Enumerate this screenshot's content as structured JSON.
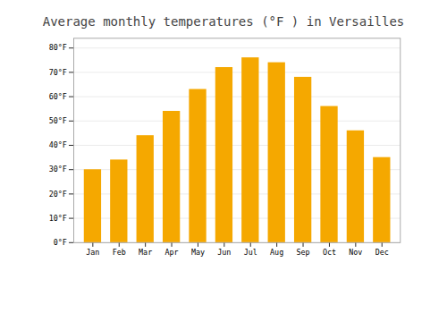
{
  "chart_data": {
    "type": "bar",
    "title": "Average monthly temperatures (°F ) in Versailles",
    "categories": [
      "Jan",
      "Feb",
      "Mar",
      "Apr",
      "May",
      "Jun",
      "Jul",
      "Aug",
      "Sep",
      "Oct",
      "Nov",
      "Dec"
    ],
    "values": [
      30,
      34,
      44,
      54,
      63,
      72,
      76,
      74,
      68,
      56,
      46,
      35
    ],
    "color": "#F5A800",
    "ylim": [
      0,
      84
    ],
    "yticks": [
      {
        "value": 0,
        "label": "0°F"
      },
      {
        "value": 10,
        "label": "10°F"
      },
      {
        "value": 20,
        "label": "20°F"
      },
      {
        "value": 30,
        "label": "30°F"
      },
      {
        "value": 40,
        "label": "40°F"
      },
      {
        "value": 50,
        "label": "50°F"
      },
      {
        "value": 60,
        "label": "60°F"
      },
      {
        "value": 70,
        "label": "70°F"
      },
      {
        "value": 80,
        "label": "80°F"
      }
    ],
    "grid": true
  }
}
